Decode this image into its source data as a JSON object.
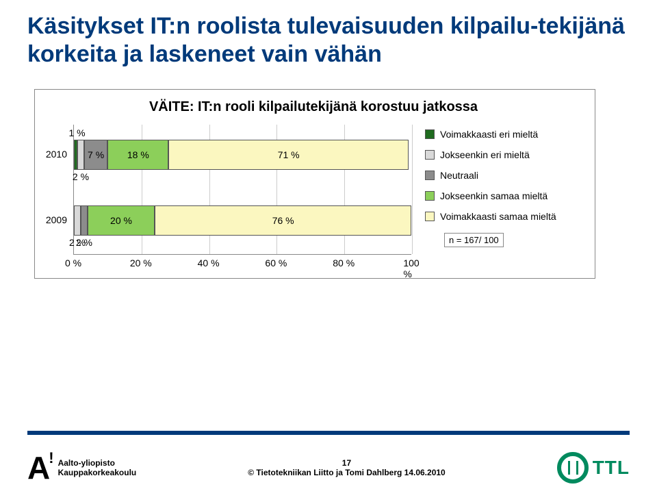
{
  "title": "Käsitykset IT:n roolista tulevaisuuden kilpailu-tekijänä korkeita ja laskeneet vain vähän",
  "chart": {
    "type": "stacked-bar-horizontal",
    "title": "VÄITE: IT:n rooli kilpailutekijänä korostuu jatkossa",
    "x_axis": {
      "min": 0,
      "max": 100,
      "step": 20,
      "ticks": [
        "0 %",
        "20 %",
        "40 %",
        "60 %",
        "80 %",
        "100 %"
      ]
    },
    "categories": [
      "2010",
      "2009"
    ],
    "series": [
      {
        "name": "Voimakkaasti eri mieltä",
        "color": "#1f6b1f"
      },
      {
        "name": "Jokseenkin eri mieltä",
        "color": "#d9d9d9"
      },
      {
        "name": "Neutraali",
        "color": "#8c8c8c"
      },
      {
        "name": "Jokseenkin samaa mieltä",
        "color": "#8ccf5a"
      },
      {
        "name": "Voimakkaasti samaa mieltä",
        "color": "#fbf7c0"
      }
    ],
    "rows": [
      {
        "label": "2010",
        "values": [
          1,
          2,
          7,
          18,
          71
        ],
        "value_labels": [
          "1 %",
          "2 %",
          "7 %",
          "18 %",
          "71 %"
        ],
        "label_positions": [
          "above",
          "below",
          "inside",
          "inside",
          "inside"
        ]
      },
      {
        "label": "2009",
        "values": [
          0,
          2,
          2,
          20,
          76
        ],
        "value_labels": [
          "",
          "2 %",
          "2 %",
          "20 %",
          "76 %"
        ],
        "label_positions": [
          "none",
          "below",
          "below",
          "inside",
          "inside"
        ]
      }
    ],
    "grid_color": "#cccccc",
    "border_color": "#888888",
    "title_fontsize": 20,
    "label_fontsize": 14,
    "background_color": "#ffffff"
  },
  "legend_n": "n = 167/ 100",
  "footer": {
    "aalto_line1": "Aalto-yliopisto",
    "aalto_line2": "Kauppakorkeakoulu",
    "page_number": "17",
    "copyright": "© Tietotekniikan Liitto ja Tomi Dahlberg 14.06.2010",
    "ttl_text": "TTL"
  },
  "colors": {
    "title": "#003a7a",
    "rule": "#003a7a",
    "ttl": "#008a5e"
  }
}
